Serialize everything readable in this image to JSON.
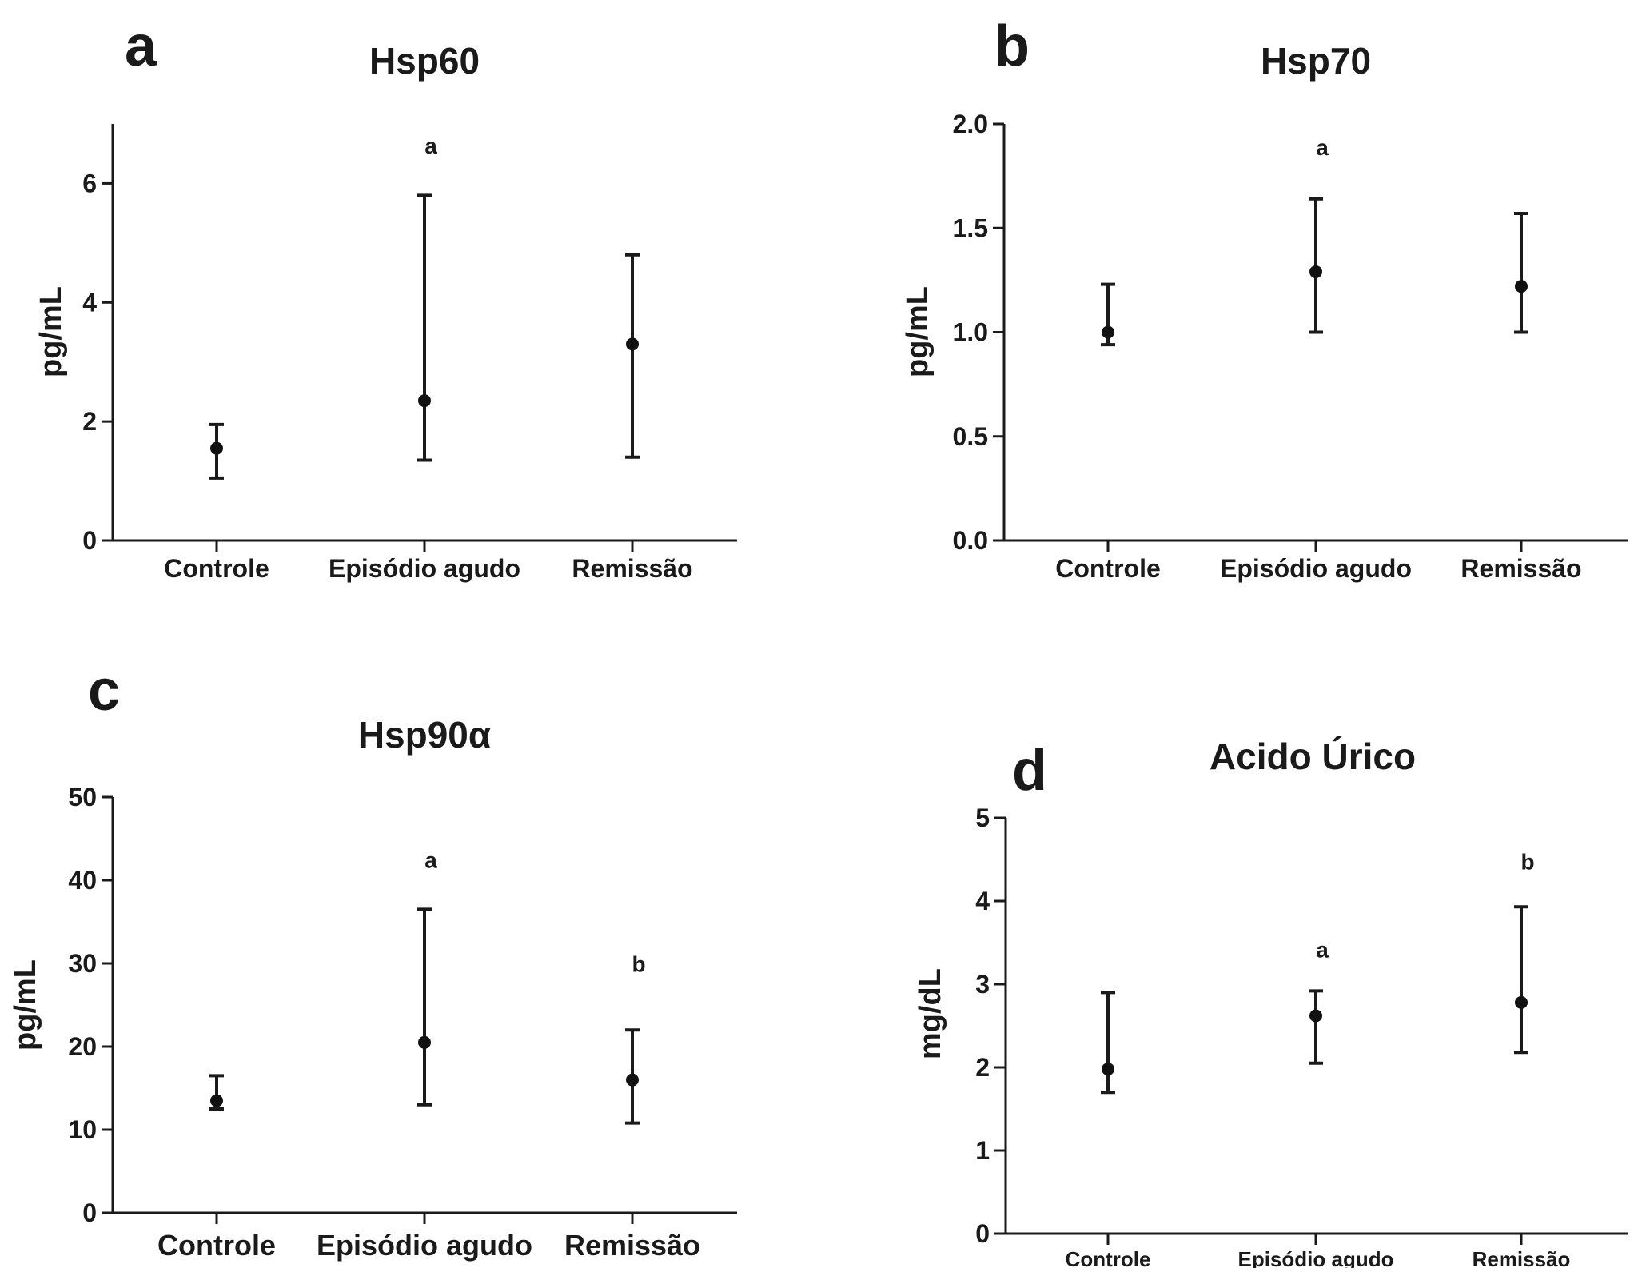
{
  "colors": {
    "ink": "#1a1a1a",
    "background": "#ffffff"
  },
  "chart_data": [
    {
      "panel": "a",
      "type": "scatter",
      "title": "Hsp60",
      "ylabel": "pg/mL",
      "categories": [
        "Controle",
        "Episódio agudo",
        "Remissão"
      ],
      "yticks": [
        "0",
        "2",
        "4",
        "6"
      ],
      "ylim": [
        0,
        7
      ],
      "values": [
        1.55,
        2.35,
        3.3
      ],
      "err_low": [
        1.05,
        1.35,
        1.4
      ],
      "err_high": [
        1.95,
        5.8,
        4.8
      ],
      "annotations": [
        "",
        "a",
        ""
      ],
      "annotation_y": [
        null,
        6.5,
        null
      ]
    },
    {
      "panel": "b",
      "type": "scatter",
      "title": "Hsp70",
      "ylabel": "pg/mL",
      "categories": [
        "Controle",
        "Episódio agudo",
        "Remissão"
      ],
      "yticks": [
        "0.0",
        "0.5",
        "1.0",
        "1.5",
        "2.0"
      ],
      "ylim": [
        0,
        2.0
      ],
      "values": [
        1.0,
        1.29,
        1.22
      ],
      "err_low": [
        0.94,
        1.0,
        1.0
      ],
      "err_high": [
        1.23,
        1.64,
        1.57
      ],
      "annotations": [
        "",
        "a",
        ""
      ],
      "annotation_y": [
        null,
        1.85,
        null
      ]
    },
    {
      "panel": "c",
      "type": "scatter",
      "title": "Hsp90α",
      "ylabel": "pg/mL",
      "categories": [
        "Controle",
        "Episódio agudo",
        "Remissão"
      ],
      "yticks": [
        "0",
        "10",
        "20",
        "30",
        "40",
        "50"
      ],
      "ylim": [
        0,
        50
      ],
      "values": [
        13.5,
        20.5,
        16.0
      ],
      "err_low": [
        12.5,
        13.0,
        10.8
      ],
      "err_high": [
        16.5,
        36.5,
        22.0
      ],
      "annotations": [
        "",
        "a",
        "b"
      ],
      "annotation_y": [
        null,
        41.5,
        29.0
      ]
    },
    {
      "panel": "d",
      "type": "scatter",
      "title": "Acido Úrico",
      "ylabel": "mg/dL",
      "categories": [
        "Controle",
        "Episódio agudo",
        "Remissão"
      ],
      "yticks": [
        "0",
        "1",
        "2",
        "3",
        "4",
        "5"
      ],
      "ylim": [
        0,
        5
      ],
      "values": [
        1.98,
        2.62,
        2.78
      ],
      "err_low": [
        1.7,
        2.05,
        2.18
      ],
      "err_high": [
        2.9,
        2.92,
        3.93
      ],
      "annotations": [
        "",
        "a",
        "b"
      ],
      "annotation_y": [
        null,
        3.32,
        4.38
      ]
    }
  ]
}
